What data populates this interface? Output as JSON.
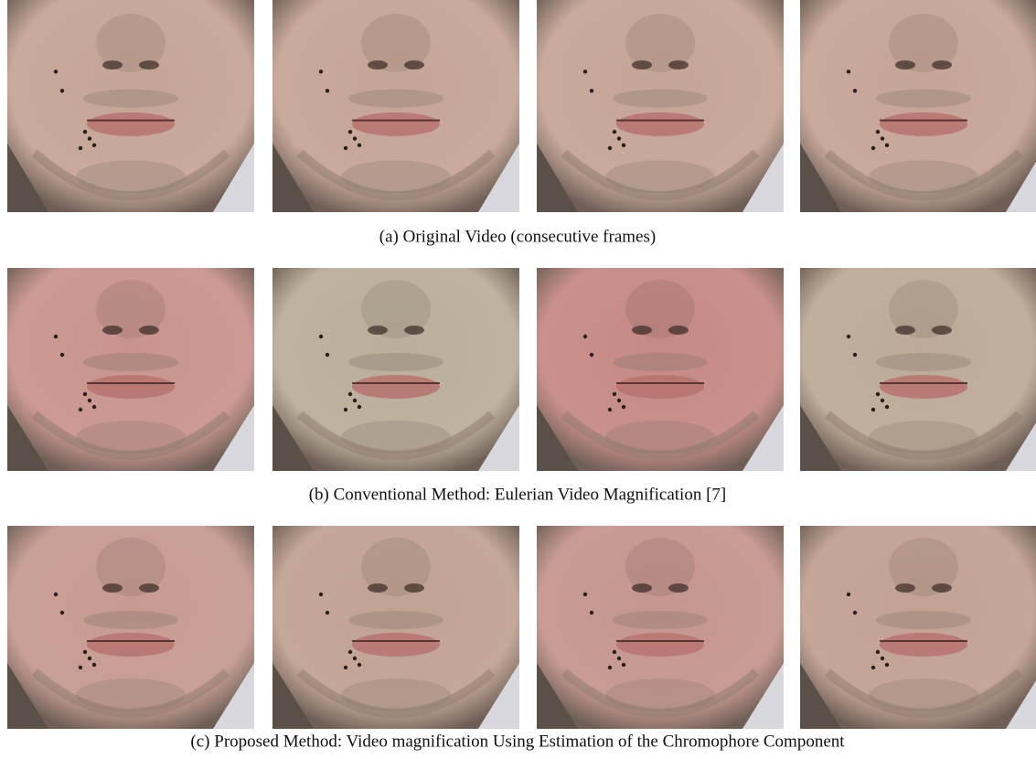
{
  "figure": {
    "rows": [
      {
        "caption": "(a) Original Video (consecutive frames)"
      },
      {
        "caption": "(b) Conventional Method: Eulerian Video Magnification [7]"
      },
      {
        "caption": "(c) Proposed Method: Video magnification Using Estimation of the Chromophore Component"
      }
    ]
  }
}
